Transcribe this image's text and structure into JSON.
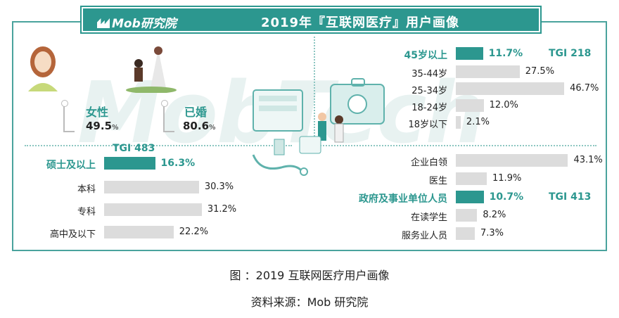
{
  "header": {
    "logo": "Mob研究院",
    "title": "2019年『互联网医疗』用户画像"
  },
  "watermark": "MobTech",
  "gender": {
    "label": "女性",
    "value": "49.5",
    "unit": "%"
  },
  "marriage": {
    "label": "已婚",
    "value": "80.6",
    "unit": "%"
  },
  "chart_data": [
    {
      "type": "bar",
      "categories": [
        "45岁以上",
        "35-44岁",
        "25-34岁",
        "18-24岁",
        "18岁以下"
      ],
      "values": [
        11.7,
        27.5,
        46.7,
        12.0,
        2.1
      ],
      "value_labels": [
        "11.7%",
        "27.5%",
        "46.7%",
        "12.0%",
        "2.1%"
      ],
      "highlight": 0,
      "tgi": "TGI 218"
    },
    {
      "type": "bar",
      "categories": [
        "硕士及以上",
        "本科",
        "专科",
        "高中及以下"
      ],
      "values": [
        16.3,
        30.3,
        31.2,
        22.2
      ],
      "value_labels": [
        "16.3%",
        "30.3%",
        "31.2%",
        "22.2%"
      ],
      "highlight": 0,
      "tgi": "TGI 483"
    },
    {
      "type": "bar",
      "categories": [
        "企业白领",
        "医生",
        "政府及事业单位人员",
        "在读学生",
        "服务业人员"
      ],
      "values": [
        43.1,
        11.9,
        10.7,
        8.2,
        7.3
      ],
      "value_labels": [
        "43.1%",
        "11.9%",
        "10.7%",
        "8.2%",
        "7.3%"
      ],
      "highlight": 2,
      "tgi": "TGI 413"
    }
  ],
  "caption": {
    "line1": "图 ：2019 互联网医疗用户画像",
    "line2": "资料来源：Mob 研究院"
  },
  "colors": {
    "teal": "#2c978f",
    "gray": "#dcdcdc",
    "border": "#4aa39d"
  }
}
